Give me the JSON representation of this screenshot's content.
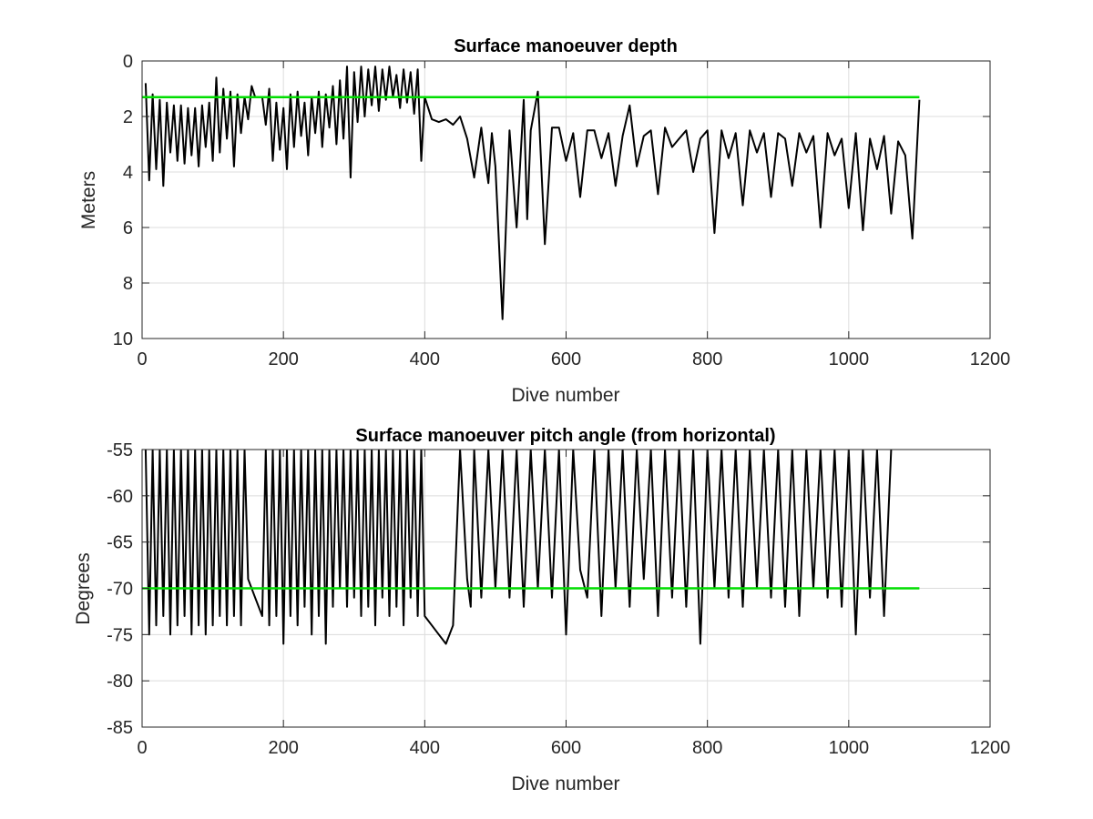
{
  "chart_data": [
    {
      "type": "line",
      "title": "Surface manoeuver depth",
      "xlabel": "Dive number",
      "ylabel": "Meters",
      "xlim": [
        0,
        1200
      ],
      "ylim": [
        0,
        10
      ],
      "y_reversed": true,
      "grid": true,
      "x_ticks": [
        "0",
        "200",
        "400",
        "600",
        "800",
        "1000",
        "1200"
      ],
      "y_ticks": [
        "0",
        "2",
        "4",
        "6",
        "8",
        "10"
      ],
      "series": [
        {
          "color": "#000000",
          "x": [
            5,
            10,
            15,
            20,
            25,
            30,
            35,
            40,
            45,
            50,
            55,
            60,
            65,
            70,
            75,
            80,
            85,
            90,
            95,
            100,
            105,
            110,
            115,
            120,
            125,
            130,
            135,
            140,
            145,
            150,
            155,
            160,
            165,
            170,
            175,
            180,
            185,
            190,
            195,
            200,
            205,
            210,
            215,
            220,
            225,
            230,
            235,
            240,
            245,
            250,
            255,
            260,
            265,
            270,
            275,
            280,
            285,
            290,
            295,
            300,
            305,
            310,
            315,
            320,
            325,
            330,
            335,
            340,
            345,
            350,
            355,
            360,
            365,
            370,
            375,
            380,
            385,
            390,
            395,
            400,
            410,
            420,
            430,
            440,
            450,
            460,
            470,
            480,
            485,
            490,
            495,
            500,
            510,
            520,
            530,
            540,
            545,
            550,
            560,
            570,
            580,
            590,
            600,
            610,
            620,
            630,
            640,
            650,
            660,
            670,
            680,
            690,
            700,
            710,
            720,
            730,
            740,
            750,
            760,
            770,
            780,
            790,
            800,
            810,
            820,
            830,
            840,
            850,
            860,
            870,
            880,
            890,
            900,
            910,
            920,
            930,
            940,
            950,
            960,
            970,
            980,
            990,
            1000,
            1010,
            1020,
            1030,
            1040,
            1050,
            1060,
            1070,
            1080,
            1090,
            1100
          ],
          "y": [
            0.8,
            4.3,
            1.2,
            3.9,
            1.4,
            4.5,
            1.5,
            3.3,
            1.6,
            3.6,
            1.6,
            3.7,
            1.7,
            3.4,
            1.7,
            3.8,
            1.6,
            3.1,
            1.5,
            3.6,
            0.6,
            3.3,
            1.0,
            2.8,
            1.1,
            3.8,
            1.2,
            2.6,
            1.3,
            2.1,
            0.9,
            1.3,
            1.3,
            1.3,
            2.3,
            1.0,
            3.6,
            1.5,
            3.2,
            1.7,
            3.9,
            1.2,
            3.1,
            1.1,
            2.7,
            1.5,
            3.4,
            1.3,
            2.6,
            1.1,
            3.1,
            1.2,
            2.4,
            0.9,
            3.0,
            0.7,
            2.8,
            0.2,
            4.2,
            0.4,
            2.2,
            0.2,
            2.0,
            0.3,
            1.6,
            0.2,
            1.8,
            0.3,
            1.4,
            0.2,
            1.3,
            0.5,
            1.7,
            0.3,
            1.5,
            0.4,
            1.9,
            0.3,
            3.6,
            1.3,
            2.1,
            2.2,
            2.1,
            2.3,
            2.0,
            2.8,
            4.2,
            2.4,
            3.5,
            4.4,
            2.6,
            3.8,
            9.3,
            2.5,
            6.0,
            1.4,
            5.7,
            2.5,
            1.1,
            6.6,
            2.4,
            2.4,
            3.6,
            2.6,
            4.9,
            2.5,
            2.5,
            3.5,
            2.6,
            4.5,
            2.7,
            1.6,
            3.8,
            2.7,
            2.5,
            4.8,
            2.4,
            3.1,
            2.8,
            2.5,
            4.0,
            2.8,
            2.5,
            6.2,
            2.5,
            3.5,
            2.6,
            5.2,
            2.5,
            3.3,
            2.6,
            4.9,
            2.6,
            2.8,
            4.5,
            2.6,
            3.3,
            2.7,
            6.0,
            2.6,
            3.4,
            2.8,
            5.3,
            2.6,
            6.1,
            2.8,
            3.9,
            2.7,
            5.5,
            2.9,
            3.4,
            6.4,
            1.4
          ]
        },
        {
          "name": "",
          "color": "#00dd00",
          "x": [
            0,
            1100
          ],
          "y": [
            1.3,
            1.3
          ]
        }
      ]
    },
    {
      "type": "line",
      "title": "Surface manoeuver pitch angle (from horizontal)",
      "xlabel": "Dive number",
      "ylabel": "Degrees",
      "xlim": [
        0,
        1200
      ],
      "ylim": [
        -85,
        -55
      ],
      "grid": true,
      "x_ticks": [
        "0",
        "200",
        "400",
        "600",
        "800",
        "1000",
        "1200"
      ],
      "y_ticks": [
        "-55",
        "-60",
        "-65",
        "-70",
        "-75",
        "-80",
        "-85"
      ],
      "series": [
        {
          "color": "#000000",
          "x": [
            5,
            10,
            15,
            20,
            25,
            30,
            35,
            40,
            45,
            50,
            55,
            60,
            65,
            70,
            75,
            80,
            85,
            90,
            95,
            100,
            105,
            110,
            115,
            120,
            125,
            130,
            135,
            140,
            145,
            150,
            160,
            170,
            175,
            180,
            185,
            190,
            195,
            200,
            205,
            210,
            215,
            220,
            225,
            230,
            235,
            240,
            245,
            250,
            255,
            260,
            265,
            270,
            275,
            280,
            285,
            290,
            295,
            300,
            305,
            310,
            315,
            320,
            325,
            330,
            335,
            340,
            345,
            350,
            355,
            360,
            365,
            370,
            375,
            380,
            385,
            390,
            395,
            400,
            410,
            420,
            430,
            440,
            450,
            460,
            465,
            470,
            480,
            490,
            500,
            510,
            520,
            530,
            540,
            550,
            560,
            570,
            580,
            590,
            600,
            610,
            620,
            630,
            640,
            650,
            660,
            670,
            680,
            690,
            700,
            710,
            720,
            730,
            740,
            750,
            760,
            770,
            780,
            790,
            800,
            810,
            820,
            830,
            840,
            850,
            860,
            870,
            880,
            890,
            900,
            910,
            920,
            930,
            940,
            950,
            960,
            970,
            980,
            990,
            1000,
            1010,
            1020,
            1030,
            1040,
            1050,
            1060
          ],
          "y": [
            -55,
            -75,
            -55,
            -74,
            -55,
            -73,
            -55,
            -75,
            -55,
            -74,
            -55,
            -73,
            -55,
            -75,
            -55,
            -74,
            -55,
            -75,
            -55,
            -74,
            -55,
            -73,
            -55,
            -74,
            -55,
            -73,
            -55,
            -74,
            -55,
            -69,
            -71,
            -73,
            -55,
            -74,
            -55,
            -73,
            -55,
            -76,
            -55,
            -73,
            -55,
            -74,
            -55,
            -72,
            -55,
            -75,
            -55,
            -73,
            -55,
            -76,
            -55,
            -72,
            -55,
            -70,
            -55,
            -72,
            -55,
            -71,
            -55,
            -73,
            -55,
            -72,
            -55,
            -74,
            -55,
            -71,
            -55,
            -73,
            -55,
            -72,
            -55,
            -74,
            -55,
            -71,
            -55,
            -73,
            -55,
            -73,
            -74,
            -75,
            -76,
            -74,
            -55,
            -69,
            -72,
            -55,
            -71,
            -55,
            -70,
            -55,
            -71,
            -55,
            -72,
            -55,
            -70,
            -55,
            -71,
            -55,
            -75,
            -55,
            -68,
            -71,
            -55,
            -73,
            -55,
            -70,
            -55,
            -72,
            -55,
            -69,
            -55,
            -73,
            -55,
            -71,
            -55,
            -72,
            -55,
            -76,
            -55,
            -70,
            -55,
            -71,
            -55,
            -72,
            -55,
            -70,
            -55,
            -71,
            -55,
            -72,
            -55,
            -73,
            -55,
            -70,
            -55,
            -71,
            -55,
            -72,
            -55,
            -75,
            -55,
            -71,
            -55,
            -73,
            -55
          ]
        },
        {
          "name": "",
          "color": "#00dd00",
          "x": [
            0,
            1100
          ],
          "y": [
            -70,
            -70
          ]
        }
      ]
    }
  ]
}
